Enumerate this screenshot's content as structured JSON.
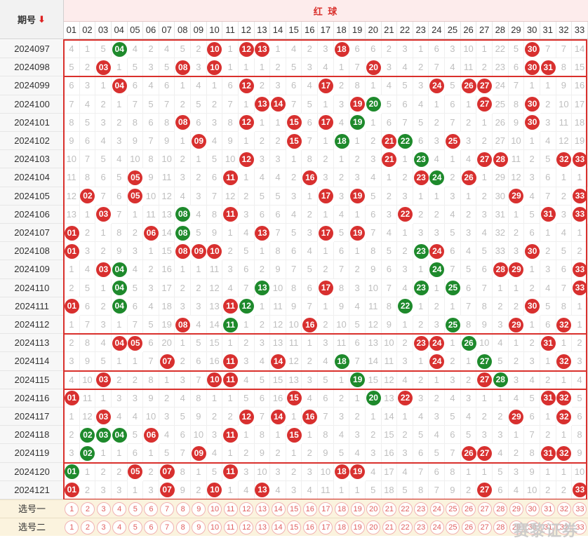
{
  "header": {
    "period_label": "期号",
    "sort_icon": "down-arrow-icon",
    "red_ball_label": "红 球"
  },
  "columns": [
    "01",
    "02",
    "03",
    "04",
    "05",
    "06",
    "07",
    "08",
    "09",
    "10",
    "11",
    "12",
    "13",
    "14",
    "15",
    "16",
    "17",
    "18",
    "19",
    "20",
    "21",
    "22",
    "23",
    "24",
    "25",
    "26",
    "27",
    "28",
    "29",
    "30",
    "31",
    "32",
    "33"
  ],
  "colors": {
    "red_ball": "#d8302f",
    "green_ball": "#1e8a2c",
    "frame": "#d9302c"
  },
  "rows": [
    {
      "period": "2024097",
      "cells": [
        "4",
        "1",
        "5",
        "04",
        "4",
        "2",
        "4",
        "5",
        "2",
        "10",
        "1",
        "12",
        "13",
        "1",
        "4",
        "2",
        "3",
        "18",
        "6",
        "6",
        "2",
        "3",
        "1",
        "6",
        "3",
        "10",
        "1",
        "22",
        "5",
        "30",
        "7",
        "7",
        "14"
      ],
      "green": [
        4
      ]
    },
    {
      "period": "2024098",
      "cells": [
        "5",
        "2",
        "03",
        "1",
        "5",
        "3",
        "5",
        "08",
        "3",
        "10",
        "1",
        "1",
        "1",
        "2",
        "5",
        "3",
        "4",
        "1",
        "7",
        "20",
        "3",
        "4",
        "2",
        "7",
        "4",
        "11",
        "2",
        "23",
        "6",
        "30",
        "31",
        "8",
        "15"
      ],
      "green": []
    },
    {
      "period": "2024099",
      "cells": [
        "6",
        "3",
        "1",
        "04",
        "6",
        "4",
        "6",
        "1",
        "4",
        "1",
        "6",
        "12",
        "2",
        "3",
        "6",
        "4",
        "17",
        "2",
        "8",
        "1",
        "4",
        "5",
        "3",
        "24",
        "5",
        "26",
        "27",
        "24",
        "7",
        "1",
        "1",
        "9",
        "16"
      ],
      "green": []
    },
    {
      "period": "2024100",
      "cells": [
        "7",
        "4",
        "2",
        "1",
        "7",
        "5",
        "7",
        "2",
        "5",
        "2",
        "7",
        "1",
        "13",
        "14",
        "7",
        "5",
        "1",
        "3",
        "19",
        "20",
        "5",
        "6",
        "4",
        "1",
        "6",
        "1",
        "27",
        "25",
        "8",
        "30",
        "2",
        "10",
        "17"
      ],
      "green": [
        20
      ]
    },
    {
      "period": "2024101",
      "cells": [
        "8",
        "5",
        "3",
        "2",
        "8",
        "6",
        "8",
        "08",
        "6",
        "3",
        "8",
        "12",
        "1",
        "1",
        "15",
        "6",
        "17",
        "4",
        "19",
        "1",
        "6",
        "7",
        "5",
        "2",
        "7",
        "2",
        "1",
        "26",
        "9",
        "30",
        "3",
        "11",
        "18"
      ],
      "green": [
        19
      ]
    },
    {
      "period": "2024102",
      "cells": [
        "9",
        "6",
        "4",
        "3",
        "9",
        "7",
        "9",
        "1",
        "09",
        "4",
        "9",
        "1",
        "2",
        "2",
        "15",
        "7",
        "1",
        "18",
        "1",
        "2",
        "21",
        "22",
        "6",
        "3",
        "25",
        "3",
        "2",
        "27",
        "10",
        "1",
        "4",
        "12",
        "19"
      ],
      "green": [
        18,
        22
      ]
    },
    {
      "period": "2024103",
      "cells": [
        "10",
        "7",
        "5",
        "4",
        "10",
        "8",
        "10",
        "2",
        "1",
        "5",
        "10",
        "12",
        "3",
        "3",
        "1",
        "8",
        "2",
        "1",
        "2",
        "3",
        "21",
        "1",
        "23",
        "4",
        "1",
        "4",
        "27",
        "28",
        "11",
        "2",
        "5",
        "32",
        "33"
      ],
      "green": [
        23
      ]
    },
    {
      "period": "2024104",
      "cells": [
        "11",
        "8",
        "6",
        "5",
        "05",
        "9",
        "11",
        "3",
        "2",
        "6",
        "11",
        "1",
        "4",
        "4",
        "2",
        "16",
        "3",
        "2",
        "3",
        "4",
        "1",
        "2",
        "23",
        "24",
        "2",
        "26",
        "1",
        "29",
        "12",
        "3",
        "6",
        "1",
        "1"
      ],
      "green": [
        24
      ]
    },
    {
      "period": "2024105",
      "cells": [
        "12",
        "02",
        "7",
        "6",
        "05",
        "10",
        "12",
        "4",
        "3",
        "7",
        "12",
        "2",
        "5",
        "5",
        "3",
        "1",
        "17",
        "3",
        "19",
        "5",
        "2",
        "3",
        "1",
        "1",
        "3",
        "1",
        "2",
        "30",
        "29",
        "4",
        "7",
        "2",
        "33"
      ],
      "green": []
    },
    {
      "period": "2024106",
      "cells": [
        "13",
        "1",
        "03",
        "7",
        "1",
        "11",
        "13",
        "08",
        "4",
        "8",
        "11",
        "3",
        "6",
        "6",
        "4",
        "2",
        "1",
        "4",
        "1",
        "6",
        "3",
        "22",
        "2",
        "2",
        "4",
        "2",
        "3",
        "31",
        "1",
        "5",
        "31",
        "3",
        "33"
      ],
      "green": [
        8
      ]
    },
    {
      "period": "2024107",
      "cells": [
        "01",
        "2",
        "1",
        "8",
        "2",
        "06",
        "14",
        "08",
        "5",
        "9",
        "1",
        "4",
        "13",
        "7",
        "5",
        "3",
        "17",
        "5",
        "19",
        "7",
        "4",
        "1",
        "3",
        "3",
        "5",
        "3",
        "4",
        "32",
        "2",
        "6",
        "1",
        "4",
        "1"
      ],
      "green": [
        8
      ]
    },
    {
      "period": "2024108",
      "cells": [
        "01",
        "3",
        "2",
        "9",
        "3",
        "1",
        "15",
        "08",
        "09",
        "10",
        "2",
        "5",
        "1",
        "8",
        "6",
        "4",
        "1",
        "6",
        "1",
        "8",
        "5",
        "2",
        "23",
        "24",
        "6",
        "4",
        "5",
        "33",
        "3",
        "30",
        "2",
        "5",
        "2"
      ],
      "green": [
        23
      ]
    },
    {
      "period": "2024109",
      "cells": [
        "1",
        "4",
        "03",
        "04",
        "4",
        "2",
        "16",
        "1",
        "1",
        "11",
        "3",
        "6",
        "2",
        "9",
        "7",
        "5",
        "2",
        "7",
        "2",
        "9",
        "6",
        "3",
        "1",
        "24",
        "7",
        "5",
        "6",
        "28",
        "29",
        "1",
        "3",
        "6",
        "33"
      ],
      "green": [
        4,
        24
      ]
    },
    {
      "period": "2024110",
      "cells": [
        "2",
        "5",
        "1",
        "04",
        "5",
        "3",
        "17",
        "2",
        "2",
        "12",
        "4",
        "7",
        "13",
        "10",
        "8",
        "6",
        "17",
        "8",
        "3",
        "10",
        "7",
        "4",
        "23",
        "1",
        "25",
        "6",
        "7",
        "1",
        "1",
        "2",
        "4",
        "7",
        "33"
      ],
      "green": [
        4,
        13,
        23,
        25
      ]
    },
    {
      "period": "2024111",
      "cells": [
        "01",
        "6",
        "2",
        "04",
        "6",
        "4",
        "18",
        "3",
        "3",
        "13",
        "11",
        "12",
        "1",
        "11",
        "9",
        "7",
        "1",
        "9",
        "4",
        "11",
        "8",
        "22",
        "1",
        "2",
        "1",
        "7",
        "8",
        "2",
        "2",
        "30",
        "5",
        "8",
        "1"
      ],
      "green": [
        4,
        12,
        22
      ]
    },
    {
      "period": "2024112",
      "cells": [
        "1",
        "7",
        "3",
        "1",
        "7",
        "5",
        "19",
        "08",
        "4",
        "14",
        "11",
        "1",
        "2",
        "12",
        "10",
        "16",
        "2",
        "10",
        "5",
        "12",
        "9",
        "1",
        "2",
        "3",
        "25",
        "8",
        "9",
        "3",
        "29",
        "1",
        "6",
        "32",
        "1"
      ],
      "green": [
        11,
        25
      ]
    },
    {
      "period": "2024113",
      "cells": [
        "2",
        "8",
        "4",
        "04",
        "05",
        "6",
        "20",
        "1",
        "5",
        "15",
        "1",
        "2",
        "3",
        "13",
        "11",
        "1",
        "3",
        "11",
        "6",
        "13",
        "10",
        "2",
        "23",
        "24",
        "1",
        "26",
        "10",
        "4",
        "1",
        "2",
        "31",
        "1",
        "2"
      ],
      "green": [
        26
      ]
    },
    {
      "period": "2024114",
      "cells": [
        "3",
        "9",
        "5",
        "1",
        "1",
        "7",
        "07",
        "2",
        "6",
        "16",
        "11",
        "3",
        "4",
        "14",
        "12",
        "2",
        "4",
        "18",
        "7",
        "14",
        "11",
        "3",
        "1",
        "24",
        "2",
        "1",
        "27",
        "5",
        "2",
        "3",
        "1",
        "32",
        "3"
      ],
      "green": [
        18,
        27
      ]
    },
    {
      "period": "2024115",
      "cells": [
        "4",
        "10",
        "03",
        "2",
        "2",
        "8",
        "1",
        "3",
        "7",
        "10",
        "11",
        "4",
        "5",
        "15",
        "13",
        "3",
        "5",
        "1",
        "19",
        "15",
        "12",
        "4",
        "2",
        "1",
        "3",
        "2",
        "27",
        "28",
        "3",
        "4",
        "2",
        "1",
        "4"
      ],
      "green": [
        19,
        28
      ]
    },
    {
      "period": "2024116",
      "cells": [
        "01",
        "11",
        "1",
        "3",
        "3",
        "9",
        "2",
        "4",
        "8",
        "1",
        "1",
        "5",
        "6",
        "16",
        "15",
        "4",
        "6",
        "2",
        "1",
        "20",
        "13",
        "22",
        "3",
        "2",
        "4",
        "3",
        "1",
        "1",
        "4",
        "5",
        "31",
        "32",
        "5"
      ],
      "green": [
        20
      ]
    },
    {
      "period": "2024117",
      "cells": [
        "1",
        "12",
        "03",
        "4",
        "4",
        "10",
        "3",
        "5",
        "9",
        "2",
        "2",
        "12",
        "7",
        "14",
        "1",
        "16",
        "7",
        "3",
        "2",
        "1",
        "14",
        "1",
        "4",
        "3",
        "5",
        "4",
        "2",
        "2",
        "29",
        "6",
        "1",
        "32",
        "6"
      ],
      "green": []
    },
    {
      "period": "2024118",
      "cells": [
        "2",
        "02",
        "03",
        "04",
        "5",
        "06",
        "4",
        "6",
        "10",
        "3",
        "11",
        "1",
        "8",
        "1",
        "15",
        "1",
        "8",
        "4",
        "3",
        "2",
        "15",
        "2",
        "5",
        "4",
        "6",
        "5",
        "3",
        "3",
        "1",
        "7",
        "2",
        "1",
        "8"
      ],
      "green": [
        2,
        3,
        4
      ]
    },
    {
      "period": "2024119",
      "cells": [
        "3",
        "02",
        "1",
        "1",
        "6",
        "1",
        "5",
        "7",
        "09",
        "4",
        "1",
        "2",
        "9",
        "2",
        "1",
        "2",
        "9",
        "5",
        "4",
        "3",
        "16",
        "3",
        "6",
        "5",
        "7",
        "26",
        "27",
        "4",
        "2",
        "8",
        "31",
        "32",
        "9"
      ],
      "green": [
        2
      ]
    },
    {
      "period": "2024120",
      "cells": [
        "01",
        "1",
        "2",
        "2",
        "05",
        "2",
        "07",
        "8",
        "1",
        "5",
        "11",
        "3",
        "10",
        "3",
        "2",
        "3",
        "10",
        "18",
        "19",
        "4",
        "17",
        "4",
        "7",
        "6",
        "8",
        "1",
        "1",
        "5",
        "3",
        "9",
        "1",
        "1",
        "10"
      ],
      "green": [
        1
      ]
    },
    {
      "period": "2024121",
      "cells": [
        "01",
        "2",
        "3",
        "3",
        "1",
        "3",
        "07",
        "9",
        "2",
        "10",
        "1",
        "4",
        "13",
        "4",
        "3",
        "4",
        "11",
        "1",
        "1",
        "5",
        "18",
        "5",
        "8",
        "7",
        "9",
        "2",
        "27",
        "6",
        "4",
        "10",
        "2",
        "2",
        "33"
      ],
      "green": []
    }
  ],
  "select_rows": [
    {
      "label": "选号一",
      "balls": [
        "1",
        "2",
        "3",
        "4",
        "5",
        "6",
        "7",
        "8",
        "9",
        "10",
        "11",
        "12",
        "13",
        "14",
        "15",
        "16",
        "17",
        "18",
        "19",
        "20",
        "21",
        "22",
        "23",
        "24",
        "25",
        "26",
        "27",
        "28",
        "29",
        "30",
        "31",
        "32",
        "33"
      ]
    },
    {
      "label": "选号二",
      "balls": [
        "1",
        "2",
        "3",
        "4",
        "5",
        "6",
        "7",
        "8",
        "9",
        "10",
        "11",
        "12",
        "13",
        "14",
        "15",
        "16",
        "17",
        "18",
        "19",
        "20",
        "21",
        "22",
        "23",
        "24",
        "25",
        "26",
        "27",
        "28",
        "29",
        "30",
        "31",
        "32",
        "33"
      ]
    }
  ],
  "watermark": "赛黎证券"
}
